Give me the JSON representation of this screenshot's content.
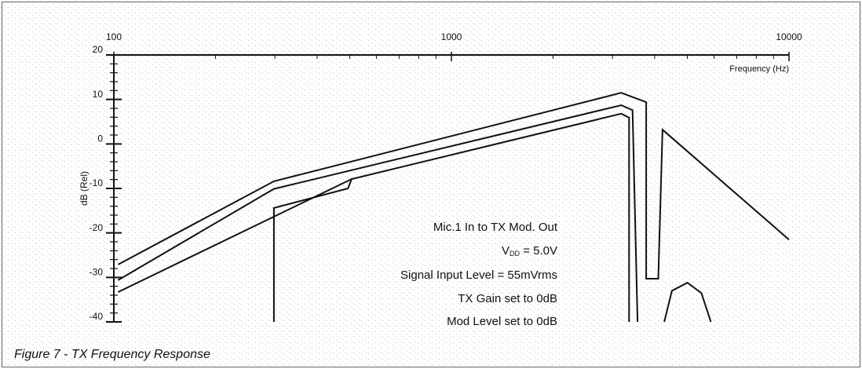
{
  "chart_data": {
    "type": "line",
    "caption": "Figure 7  -  TX Frequency Response",
    "xlabel": "Frequency (Hz)",
    "ylabel": "dB (Rel)",
    "log_x": true,
    "xlim": [
      100,
      10000
    ],
    "xticks": [
      100,
      1000,
      10000
    ],
    "xminorticks": [
      200,
      300,
      400,
      500,
      600,
      700,
      800,
      900,
      2000,
      3000,
      4000,
      5000,
      6000,
      7000,
      8000,
      9000
    ],
    "ylim": [
      -40,
      20
    ],
    "yticks": [
      -40,
      -30,
      -20,
      -10,
      0,
      10,
      20
    ],
    "yminorticks": [
      -38,
      -36,
      -34,
      -32,
      -28,
      -26,
      -24,
      -22,
      -18,
      -16,
      -14,
      -12,
      -8,
      -6,
      -4,
      -2,
      2,
      4,
      6,
      8,
      12,
      14,
      16,
      18
    ],
    "color": "#111111",
    "annotations": [
      "Mic.1 In  to  TX Mod. Out",
      "Signal Input Level = 55mVrms",
      "TX Gain set to 0dB",
      "Mod Level set to 0dB"
    ],
    "vdd": {
      "symbol": "V",
      "subscript": "DD",
      "text": " = 5.0V"
    },
    "series": [
      {
        "x": [
          103,
          298,
          3184,
          3776,
          3776,
          4100,
          4220,
          10000
        ],
        "values": [
          -27.1,
          -8.4,
          11.5,
          9.4,
          -30.3,
          -30.3,
          3.2,
          -21.5
        ]
      },
      {
        "x": [
          103,
          298,
          3184,
          3440,
          3560
        ],
        "values": [
          -30.6,
          -10.1,
          8.7,
          7.6,
          -40
        ]
      },
      {
        "x": [
          103,
          506
        ],
        "values": [
          -33.3,
          -7.9
        ]
      },
      {
        "x": [
          298,
          298,
          494,
          506,
          3184,
          3360,
          3360
        ],
        "values": [
          -40,
          -14.4,
          -10,
          -7.9,
          6.8,
          5.9,
          -40
        ]
      },
      {
        "x": [
          4270,
          4500,
          5000,
          5500,
          5870
        ],
        "values": [
          -40,
          -33,
          -31.2,
          -33.5,
          -40
        ]
      }
    ]
  }
}
